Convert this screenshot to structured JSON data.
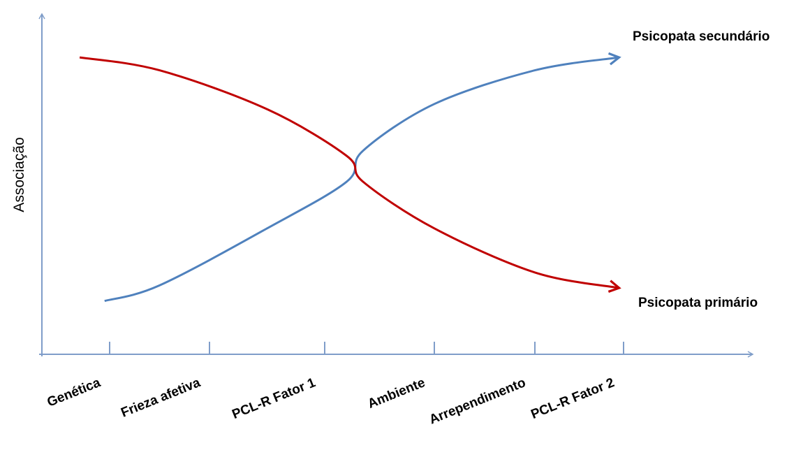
{
  "chart_data": {
    "type": "line",
    "xlabel": "",
    "ylabel": "Associação",
    "categories": [
      "Genética",
      "Frieza afetiva",
      "PCL-R Fator 1",
      "Ambiente",
      "Arrependimento",
      "PCL-R Fator 2"
    ],
    "series": [
      {
        "name": "Psicopata secundário",
        "color": "#4F81BD",
        "x": [
          -0.05,
          0.5,
          1.5,
          2.2,
          2.35,
          3.0,
          4.0,
          4.95
        ],
        "y": [
          1.6,
          2.2,
          4.4,
          6.2,
          7.4,
          9.2,
          10.5,
          11.0
        ]
      },
      {
        "name": "Psicopata primário",
        "color": "#C00000",
        "x": [
          -0.3,
          0.5,
          1.5,
          2.2,
          2.35,
          3.0,
          4.0,
          4.95
        ],
        "y": [
          11.0,
          10.5,
          9.0,
          7.2,
          6.2,
          4.4,
          2.7,
          2.1
        ]
      }
    ],
    "ylim": [
      0,
      12
    ],
    "grid": false,
    "legend": "none"
  },
  "colors": {
    "axis": "#7F9DC9",
    "secondary": "#4F81BD",
    "primary": "#C00000"
  }
}
